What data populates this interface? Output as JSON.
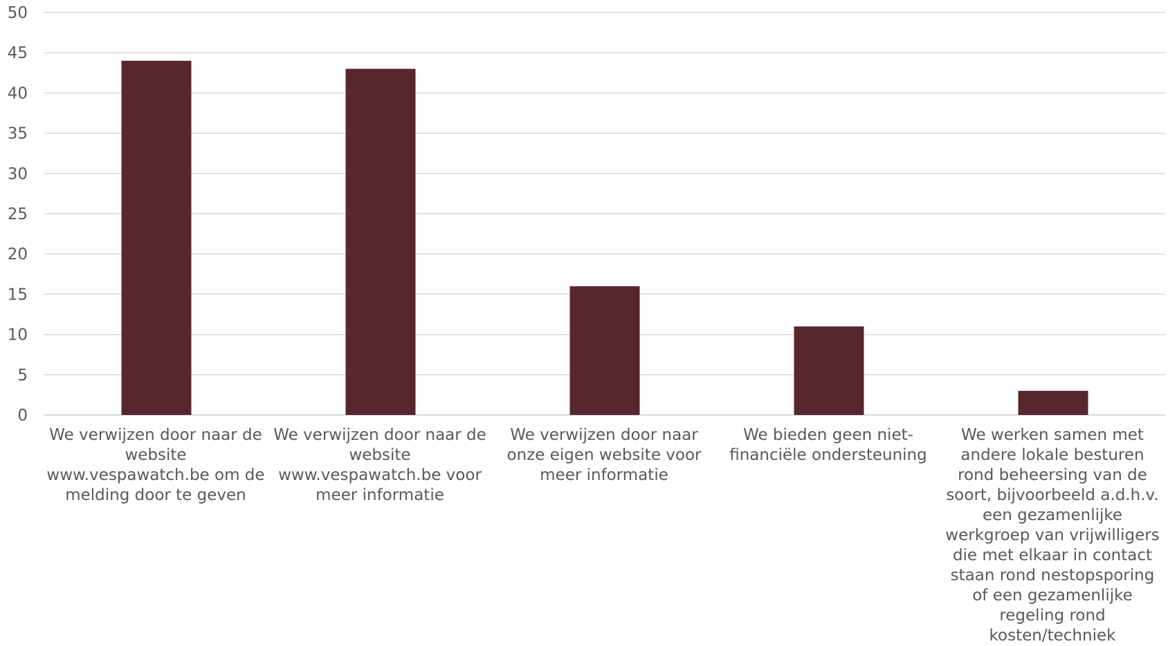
{
  "chart_data": {
    "type": "bar",
    "title": "",
    "xlabel": "",
    "ylabel": "",
    "ylim": [
      0,
      50
    ],
    "yticks": [
      0,
      5,
      10,
      15,
      20,
      25,
      30,
      35,
      40,
      45,
      50
    ],
    "grid": true,
    "legend": "none",
    "bar_color": "#58262f",
    "gridline_color": "#d9d9d9",
    "categories": [
      "We verwijzen door naar de website www.vespawatch.be om de melding door te geven",
      "We verwijzen door naar de website www.vespawatch.be voor meer informatie",
      "We verwijzen door naar onze eigen website voor meer informatie",
      "We bieden geen niet-financiële ondersteuning",
      "We werken samen met andere lokale besturen rond beheersing van de soort, bijvoorbeeld a.d.h.v. een gezamenlijke werkgroep van vrijwilligers die met elkaar in contact staan rond nestopsporing of een gezamenlijke regeling rond kosten/techniek"
    ],
    "values": [
      44,
      43,
      16,
      11,
      3
    ]
  }
}
